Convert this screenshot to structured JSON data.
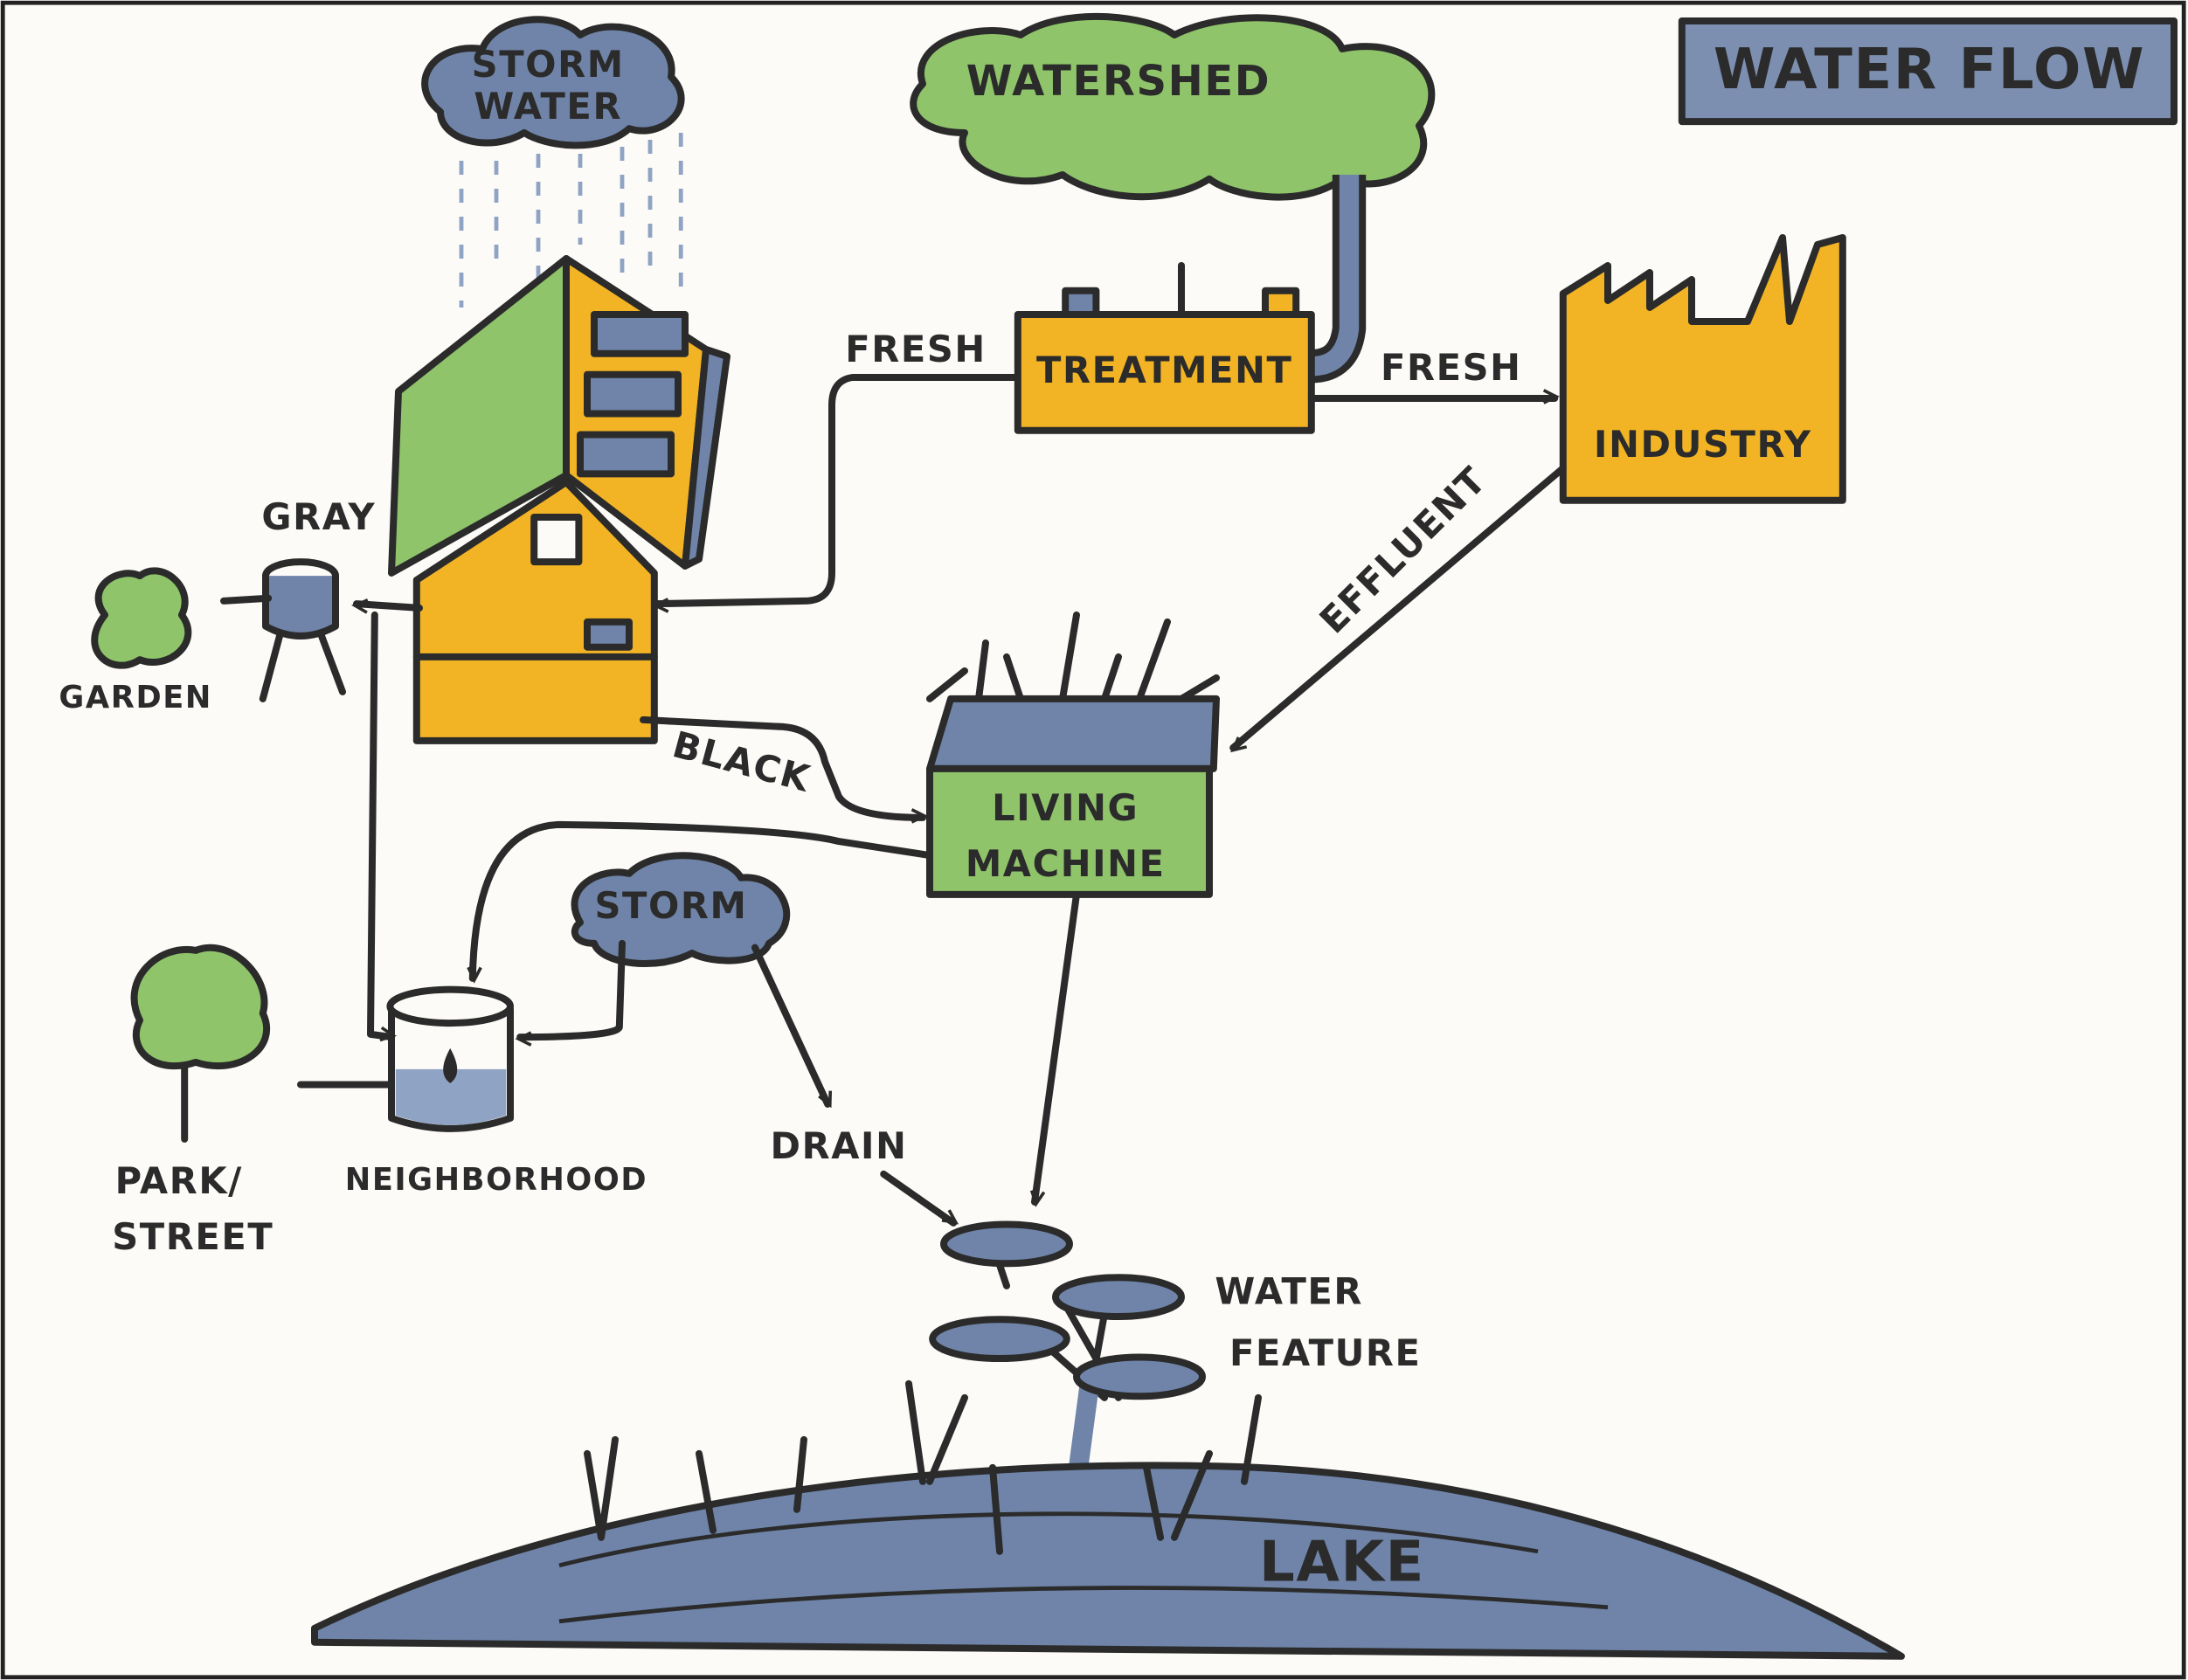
{
  "title": "WATER FLOW",
  "nodes": [
    {
      "lines": [
        "STORM",
        "WATER"
      ]
    },
    {
      "lines": [
        "WATERSHED"
      ]
    },
    {
      "lines": [
        "TREATMENT"
      ]
    },
    {
      "lines": [
        "INDUSTRY"
      ]
    },
    {
      "lines": [
        "GRAY"
      ]
    },
    {
      "lines": [
        "GARDEN"
      ]
    },
    {
      "lines": [
        "LIVING",
        "MACHINE"
      ]
    },
    {
      "lines": [
        "STORM"
      ]
    },
    {
      "lines": [
        "NEIGHBORHOOD"
      ]
    },
    {
      "lines": [
        "PARK/",
        "STREET"
      ]
    },
    {
      "lines": [
        "DRAIN"
      ]
    },
    {
      "lines": [
        "WATER",
        "FEATURE"
      ]
    },
    {
      "lines": [
        "LAKE"
      ]
    }
  ],
  "edges": [
    {
      "label": "FRESH"
    },
    {
      "label": "FRESH"
    },
    {
      "label": "EFFLUENT"
    },
    {
      "label": "BLACK"
    }
  ]
}
